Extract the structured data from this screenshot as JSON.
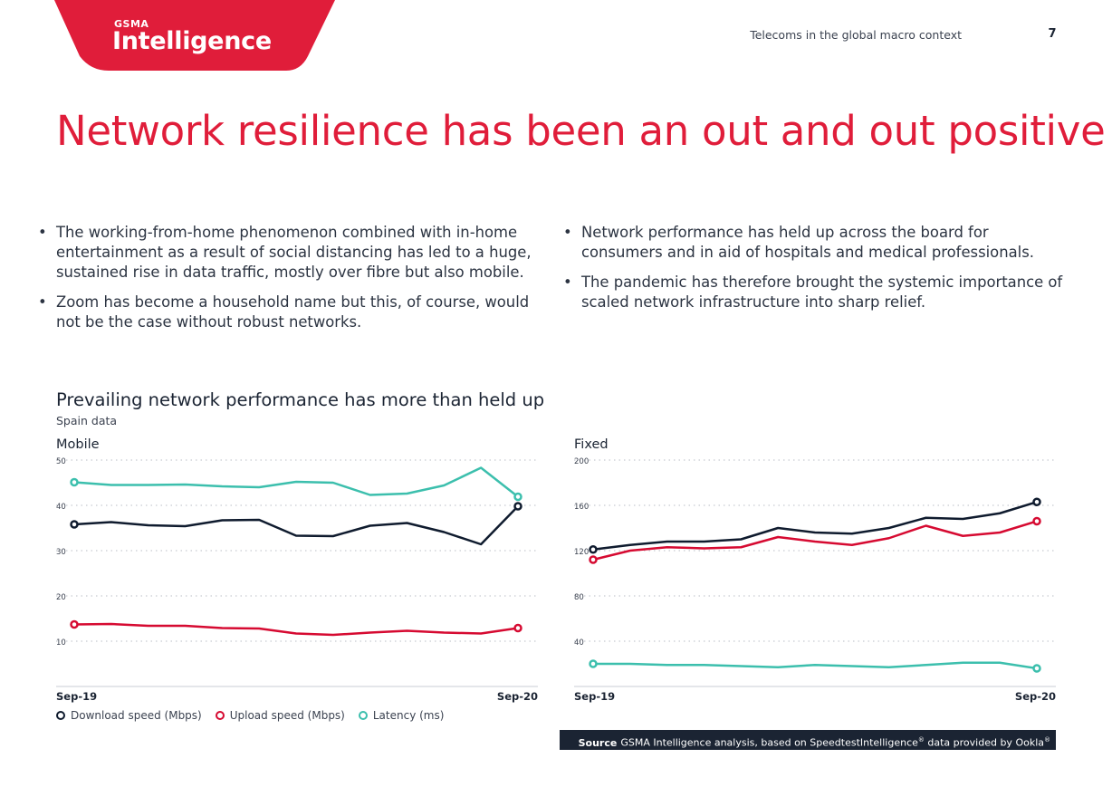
{
  "header": {
    "brand_small": "GSMA",
    "brand_big": "Intelligence",
    "section": "Telecoms in the global macro context",
    "page_number": "7"
  },
  "title": "Network resilience has been an out and out positive",
  "bullets_left": [
    "The working-from-home phenomenon combined with in-home entertainment as a result of social distancing has led to a huge, sustained rise in data traffic, mostly over fibre but also mobile.",
    "Zoom has become a household name but this, of course, would not be the case without robust networks."
  ],
  "bullets_right": [
    "Network performance has held up across the board for consumers and in aid of hospitals and medical professionals.",
    "The pandemic has therefore brought the systemic importance of scaled network infrastructure into sharp relief."
  ],
  "colors": {
    "download": "#0f1b2e",
    "upload": "#d60a31",
    "latency": "#3cbfad",
    "accent": "#e01d3a",
    "grid": "#b9bec6"
  },
  "chart_heading": {
    "title": "Prevailing network performance has more than held up",
    "subtitle": "Spain data"
  },
  "legend": {
    "download": "Download speed (Mbps)",
    "upload": "Upload speed (Mbps)",
    "latency": "Latency (ms)"
  },
  "source": {
    "label": "Source",
    "text": "GSMA Intelligence analysis, based on SpeedtestIntelligence",
    "text_end": " data provided by Ookla",
    "reg": "®"
  },
  "chart_data": [
    {
      "type": "line",
      "title": "Mobile",
      "x_start_label": "Sep-19",
      "x_end_label": "Sep-20",
      "ylim": [
        0,
        50
      ],
      "yticks": [
        10,
        20,
        30,
        40,
        50
      ],
      "grid": true,
      "legend": "bottom-left",
      "series": [
        {
          "name": "Download speed (Mbps)",
          "key": "download",
          "values": [
            35.8,
            36.3,
            35.6,
            35.4,
            36.7,
            36.8,
            33.3,
            33.2,
            35.5,
            36.1,
            34.1,
            31.4,
            39.8
          ]
        },
        {
          "name": "Upload speed (Mbps)",
          "key": "upload",
          "values": [
            13.7,
            13.8,
            13.4,
            13.4,
            12.9,
            12.8,
            11.7,
            11.4,
            11.9,
            12.3,
            11.9,
            11.7,
            12.9
          ]
        },
        {
          "name": "Latency (ms)",
          "key": "latency",
          "values": [
            45.1,
            44.5,
            44.5,
            44.6,
            44.2,
            44.0,
            45.2,
            45.0,
            42.3,
            42.6,
            44.4,
            48.3,
            41.9
          ]
        }
      ]
    },
    {
      "type": "line",
      "title": "Fixed",
      "x_start_label": "Sep-19",
      "x_end_label": "Sep-20",
      "ylim": [
        0,
        200
      ],
      "yticks": [
        40,
        80,
        120,
        160,
        200
      ],
      "grid": true,
      "legend": "bottom-left",
      "series": [
        {
          "name": "Download speed (Mbps)",
          "key": "download",
          "values": [
            121,
            125,
            128,
            128,
            130,
            140,
            136,
            135,
            140,
            149,
            148,
            153,
            163
          ]
        },
        {
          "name": "Upload speed (Mbps)",
          "key": "upload",
          "values": [
            112,
            120,
            123,
            122,
            123,
            132,
            128,
            125,
            131,
            142,
            133,
            136,
            146
          ]
        },
        {
          "name": "Latency (ms)",
          "key": "latency",
          "values": [
            20,
            20,
            19,
            19,
            18,
            17,
            19,
            18,
            17,
            19,
            21,
            21,
            16
          ]
        }
      ]
    }
  ]
}
